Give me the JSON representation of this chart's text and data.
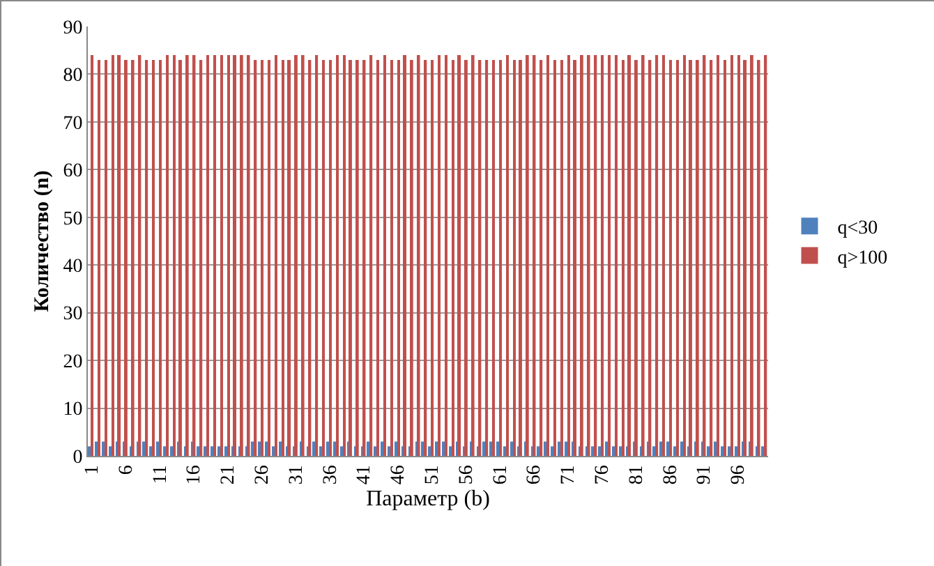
{
  "chart_data": {
    "type": "bar",
    "xlabel": "Параметр (b)",
    "ylabel": "Количество (n)",
    "categories": [
      "1",
      null,
      null,
      null,
      null,
      "6",
      null,
      null,
      null,
      null,
      "11",
      null,
      null,
      null,
      null,
      "16",
      null,
      null,
      null,
      null,
      "21",
      null,
      null,
      null,
      null,
      "26",
      null,
      null,
      null,
      null,
      "31",
      null,
      null,
      null,
      null,
      "36",
      null,
      null,
      null,
      null,
      "41",
      null,
      null,
      null,
      null,
      "46",
      null,
      null,
      null,
      null,
      "51",
      null,
      null,
      null,
      null,
      "56",
      null,
      null,
      null,
      null,
      "61",
      null,
      null,
      null,
      null,
      "66",
      null,
      null,
      null,
      null,
      "71",
      null,
      null,
      null,
      null,
      "76",
      null,
      null,
      null,
      null,
      "81",
      null,
      null,
      null,
      null,
      "86",
      null,
      null,
      null,
      null,
      "91",
      null,
      null,
      null,
      null,
      "96",
      null,
      null,
      null,
      null
    ],
    "series": [
      {
        "name": "q<30",
        "color": "#4f81bd",
        "values": [
          2,
          3,
          3,
          2,
          3,
          3,
          2,
          3,
          3,
          2,
          3,
          2,
          2,
          3,
          2,
          3,
          2,
          2,
          2,
          2,
          2,
          2,
          2,
          2,
          3,
          3,
          3,
          2,
          3,
          2,
          2,
          3,
          2,
          3,
          2,
          3,
          3,
          2,
          3,
          2,
          2,
          3,
          2,
          3,
          2,
          3,
          2,
          2,
          3,
          3,
          2,
          3,
          3,
          2,
          3,
          2,
          3,
          2,
          3,
          3,
          3,
          2,
          3,
          2,
          3,
          2,
          2,
          3,
          2,
          3,
          3,
          3,
          2,
          2,
          2,
          2,
          3,
          2,
          2,
          2,
          3,
          2,
          3,
          2,
          3,
          3,
          2,
          3,
          2,
          3,
          3,
          2,
          3,
          2,
          2,
          2,
          3,
          3,
          2,
          2
        ]
      },
      {
        "name": "q>100",
        "color": "#c0504d",
        "values": [
          84,
          83,
          83,
          84,
          84,
          83,
          83,
          84,
          83,
          83,
          83,
          84,
          84,
          83,
          84,
          84,
          83,
          84,
          84,
          84,
          84,
          84,
          84,
          84,
          83,
          83,
          83,
          84,
          83,
          83,
          84,
          84,
          83,
          84,
          83,
          83,
          84,
          84,
          83,
          83,
          83,
          84,
          83,
          84,
          83,
          83,
          84,
          83,
          84,
          83,
          83,
          84,
          84,
          83,
          84,
          83,
          84,
          83,
          83,
          83,
          83,
          84,
          83,
          83,
          84,
          84,
          83,
          84,
          83,
          83,
          84,
          83,
          84,
          84,
          84,
          84,
          84,
          84,
          83,
          84,
          83,
          84,
          83,
          84,
          84,
          83,
          83,
          84,
          83,
          83,
          84,
          83,
          84,
          83,
          84,
          84,
          83,
          84,
          83,
          84
        ]
      }
    ],
    "ylim": [
      0,
      90
    ],
    "yticks": [
      0,
      10,
      20,
      30,
      40,
      50,
      60,
      70,
      80,
      90
    ],
    "grid": "y",
    "legend": "right"
  }
}
